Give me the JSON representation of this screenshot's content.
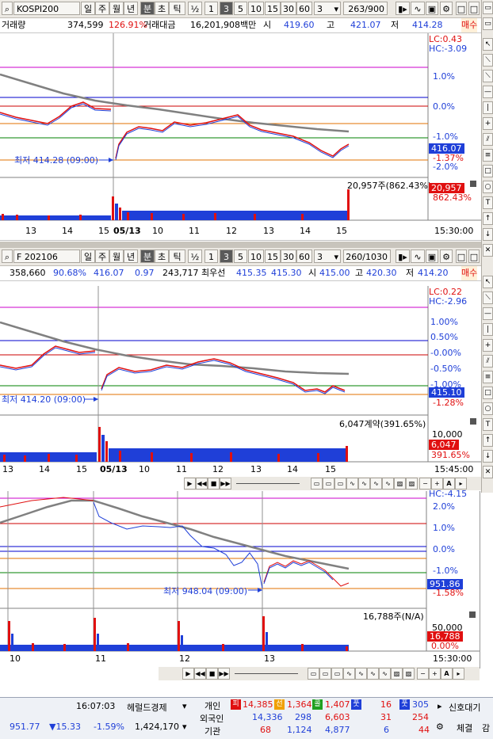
{
  "chart1": {
    "toolbar": {
      "code": "KOSPI200",
      "tabs": [
        "일",
        "주",
        "월",
        "년",
        "분",
        "초",
        "틱"
      ],
      "selected_tab": "분",
      "half": "½",
      "intervals": [
        "1",
        "3",
        "5",
        "10",
        "15",
        "30",
        "60"
      ],
      "selected_interval": "3",
      "period_value": "3",
      "count": "263/900"
    },
    "info": {
      "vol_label": "거래량",
      "vol_value": "374,599",
      "vol_pct": "126.91%",
      "amt_label": "거래대금",
      "amt_value": "16,201,908백만",
      "open_label": "시",
      "open_value": "419.60",
      "high_label": "고",
      "high_value": "421.07",
      "low_label": "저",
      "low_value": "414.28",
      "extra": "매수"
    },
    "lc_text": "LC:0.43",
    "hc_text": "HC:-3.09",
    "scale_labels": [
      "1.0%",
      "0.0%",
      "-1.0%",
      "-2.0%"
    ],
    "current_price": "416.07",
    "current_pct": "-1.37%",
    "low_annotation": "최저 414.28 (09:00)",
    "volume_annotation": "20,957주(862.43%)",
    "volume_box": "20,957",
    "volume_pct": "862.43%",
    "time_labels": [
      "13",
      "14",
      "15",
      "05/13",
      "10",
      "11",
      "12",
      "13",
      "14",
      "15"
    ],
    "time_right": "15:30:00",
    "colors": {
      "up": "#e01010",
      "down": "#1f3fd8",
      "ma": "#808080"
    }
  },
  "chart2": {
    "toolbar": {
      "code": "F 202106",
      "tabs": [
        "일",
        "주",
        "월",
        "년",
        "분",
        "초",
        "틱"
      ],
      "selected_tab": "분",
      "half": "½",
      "intervals": [
        "1",
        "3",
        "5",
        "10",
        "15",
        "30",
        "60"
      ],
      "selected_interval": "3",
      "period_value": "3",
      "count": "260/1030"
    },
    "info": {
      "v1": "358,660",
      "v2": "90.68%",
      "v3": "416.07",
      "v4": "0.97",
      "v5": "243,717",
      "best_label": "최우선",
      "best1": "415.35",
      "best2": "415.30",
      "open_label": "시",
      "open_value": "415.00",
      "high_label": "고",
      "high_value": "420.30",
      "low_label": "저",
      "low_value": "414.20",
      "extra": "매수"
    },
    "lc_text": "LC:0.22",
    "hc_text": "HC:-2.96",
    "scale_labels": [
      "1.00%",
      "0.50%",
      "-0.00%",
      "-0.50%",
      "-1.00%"
    ],
    "current_price": "415.10",
    "current_pct": "-1.28%",
    "low_annotation": "최저 414.20 (09:00)",
    "volume_annotation": "6,047계약(391.65%)",
    "volume_scale": "10,000",
    "volume_box": "6,047",
    "volume_pct": "391.65%",
    "time_labels": [
      "13",
      "14",
      "15",
      "05/13",
      "10",
      "11",
      "12",
      "13",
      "14",
      "15"
    ],
    "time_right": "15:45:00"
  },
  "chart3": {
    "scale_labels": [
      "2.0%",
      "1.0%",
      "0.0%",
      "-1.0%"
    ],
    "hc_text": "HC:-4.15",
    "current_price": "951.86",
    "current_pct": "-1.58%",
    "low_annotation": "최저 948.04 (09:00)",
    "volume_annotation": "16,788주(N/A)",
    "volume_scale": "50,000",
    "volume_box": "16,788",
    "volume_pct": "0.00%",
    "time_labels": [
      "10",
      "11",
      "12",
      "13"
    ],
    "time_right": "15:30:00"
  },
  "status": {
    "time": "16:07:03",
    "news": "헤럴드경제",
    "index_value": "951.77",
    "index_change": "▼15.33",
    "index_pct": "-1.59%",
    "index_volume": "1,424,170",
    "row_labels": [
      "개인",
      "외국인",
      "기관"
    ],
    "rows": [
      [
        "14,385",
        "1,364",
        "1,407",
        "16",
        "305"
      ],
      [
        "14,336",
        "298",
        "6,603",
        "31",
        "254"
      ],
      [
        "68",
        "1,124",
        "4,877",
        "6",
        "44"
      ]
    ],
    "badges": [
      "피",
      "선",
      "콜",
      "풋"
    ],
    "signal": "신호대기",
    "settings": "체결",
    "more": "감"
  }
}
